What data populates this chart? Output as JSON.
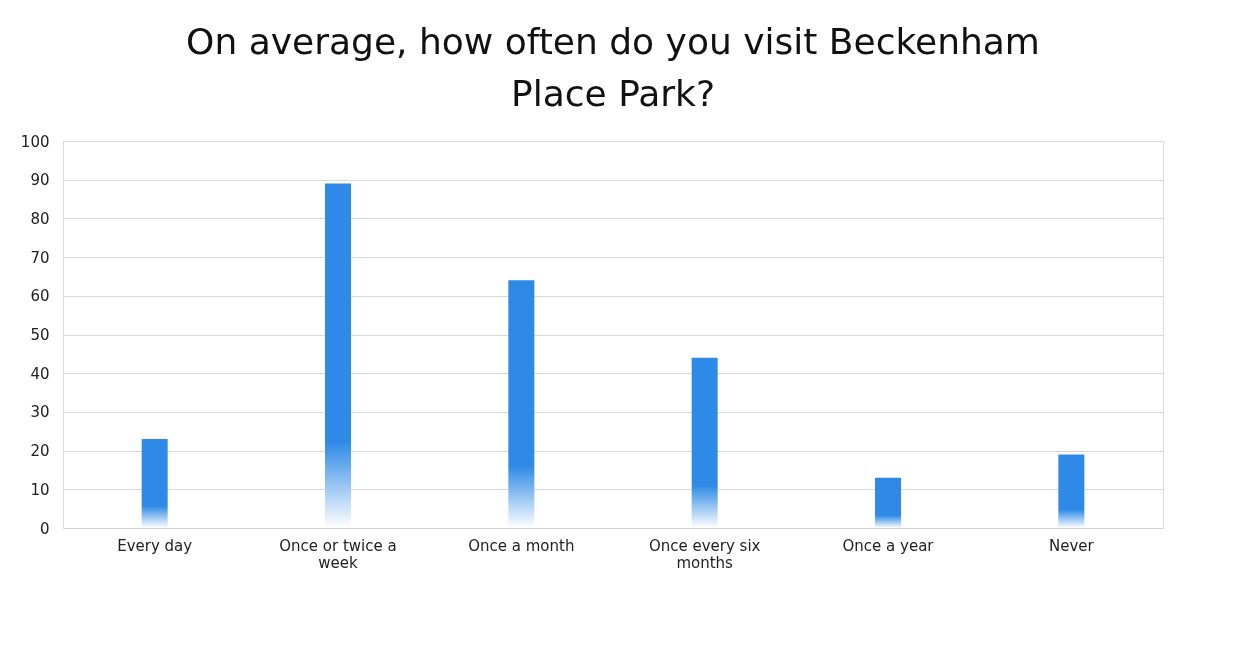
{
  "chart_data": {
    "type": "bar",
    "title": "On average, how often do you visit Beckenham Place Park?",
    "categories": [
      "Every day",
      "Once or twice a week",
      "Once a month",
      "Once every six months",
      "Once a year",
      "Never"
    ],
    "values": [
      23,
      89,
      64,
      44,
      13,
      19
    ],
    "color": "#2e8ae6",
    "ylim": [
      0,
      100
    ],
    "yticks": [
      0,
      10,
      20,
      30,
      40,
      50,
      60,
      70,
      80,
      90,
      100
    ],
    "grid": "y"
  }
}
